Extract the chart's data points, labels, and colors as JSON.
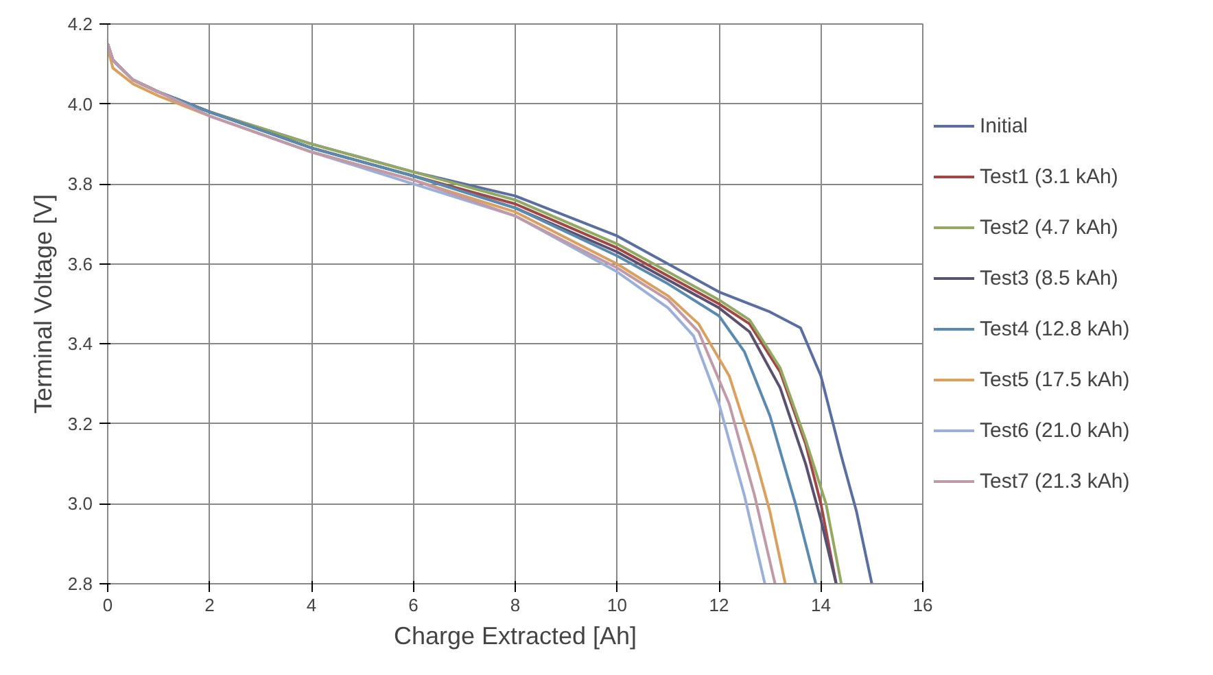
{
  "chart_data": {
    "type": "line",
    "xlabel": "Charge Extracted [Ah]",
    "ylabel": "Terminal Voltage [V]",
    "xlim": [
      0,
      16
    ],
    "xticks": [
      0,
      2,
      4,
      6,
      8,
      10,
      12,
      14,
      16
    ],
    "ylim": [
      2.8,
      4.2
    ],
    "yticks": [
      {
        "value": 2.8,
        "label": "2.8"
      },
      {
        "value": 3.0,
        "label": "3.0"
      },
      {
        "value": 3.2,
        "label": "3.2"
      },
      {
        "value": 3.4,
        "label": "3.4"
      },
      {
        "value": 3.6,
        "label": "3.6"
      },
      {
        "value": 3.8,
        "label": "3.8"
      },
      {
        "value": 4.0,
        "label": "4.0"
      },
      {
        "value": 4.2,
        "label": "4.2"
      }
    ],
    "grid": true,
    "legend": "right",
    "line_style": "solid",
    "marker": "none",
    "series": [
      {
        "name": "Initial",
        "color": "#5a6fa0",
        "x": [
          0,
          0.1,
          0.5,
          1,
          2,
          4,
          6,
          8,
          10,
          11,
          12,
          13,
          13.6,
          14,
          14.4,
          14.7,
          15.0
        ],
        "values": [
          4.15,
          4.11,
          4.06,
          4.03,
          3.98,
          3.9,
          3.83,
          3.77,
          3.67,
          3.6,
          3.53,
          3.48,
          3.44,
          3.32,
          3.12,
          2.98,
          2.8
        ]
      },
      {
        "name": "Test1 (3.1 kAh)",
        "color": "#a04848",
        "x": [
          0,
          0.1,
          0.5,
          1,
          2,
          4,
          6,
          8,
          10,
          11,
          12,
          12.6,
          13.2,
          13.7,
          14.0,
          14.3
        ],
        "values": [
          4.15,
          4.11,
          4.06,
          4.03,
          3.98,
          3.89,
          3.82,
          3.75,
          3.64,
          3.57,
          3.5,
          3.45,
          3.33,
          3.15,
          3.0,
          2.8
        ]
      },
      {
        "name": "Test2 (4.7 kAh)",
        "color": "#93a860",
        "x": [
          0,
          0.1,
          0.5,
          1,
          2,
          4,
          6,
          8,
          10,
          11,
          12,
          12.6,
          13.2,
          13.7,
          14.1,
          14.4
        ],
        "values": [
          4.15,
          4.11,
          4.06,
          4.03,
          3.98,
          3.9,
          3.83,
          3.76,
          3.65,
          3.58,
          3.51,
          3.46,
          3.34,
          3.16,
          3.0,
          2.8
        ]
      },
      {
        "name": "Test3 (8.5 kAh)",
        "color": "#5a5070",
        "x": [
          0,
          0.1,
          0.5,
          1,
          2,
          4,
          6,
          8,
          10,
          11,
          12,
          12.6,
          13.2,
          13.7,
          14.0,
          14.3
        ],
        "values": [
          4.15,
          4.11,
          4.06,
          4.03,
          3.98,
          3.89,
          3.82,
          3.74,
          3.63,
          3.56,
          3.49,
          3.43,
          3.29,
          3.1,
          2.96,
          2.8
        ]
      },
      {
        "name": "Test4 (12.8 kAh)",
        "color": "#5a8ab0",
        "x": [
          0,
          0.1,
          0.5,
          1,
          2,
          4,
          6,
          8,
          10,
          11,
          12,
          12.5,
          13,
          13.5,
          13.9
        ],
        "values": [
          4.15,
          4.11,
          4.06,
          4.03,
          3.98,
          3.89,
          3.82,
          3.74,
          3.62,
          3.55,
          3.47,
          3.38,
          3.22,
          3.0,
          2.8
        ]
      },
      {
        "name": "Test5 (17.5 kAh)",
        "color": "#d9a060",
        "x": [
          0,
          0.1,
          0.5,
          1,
          2,
          4,
          6,
          8,
          10,
          11,
          11.6,
          12.2,
          12.7,
          13.0,
          13.3
        ],
        "values": [
          4.14,
          4.09,
          4.05,
          4.02,
          3.97,
          3.88,
          3.81,
          3.73,
          3.6,
          3.52,
          3.45,
          3.32,
          3.12,
          2.98,
          2.8
        ]
      },
      {
        "name": "Test6 (21.0 kAh)",
        "color": "#9ab0d8",
        "x": [
          0,
          0.1,
          0.5,
          1,
          2,
          4,
          6,
          8,
          10,
          11,
          11.5,
          12,
          12.5,
          12.9
        ],
        "values": [
          4.15,
          4.11,
          4.06,
          4.03,
          3.97,
          3.88,
          3.8,
          3.72,
          3.58,
          3.49,
          3.42,
          3.25,
          3.02,
          2.8
        ]
      },
      {
        "name": "Test7 (21.3 kAh)",
        "color": "#c09aa8",
        "x": [
          0,
          0.1,
          0.5,
          1,
          2,
          4,
          6,
          8,
          10,
          11,
          11.6,
          12.2,
          12.7,
          13.1
        ],
        "values": [
          4.15,
          4.11,
          4.06,
          4.03,
          3.97,
          3.88,
          3.81,
          3.72,
          3.59,
          3.51,
          3.43,
          3.25,
          3.02,
          2.8
        ]
      }
    ]
  }
}
